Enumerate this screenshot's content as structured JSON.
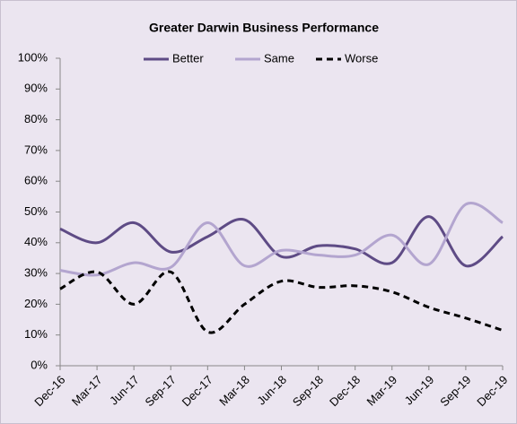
{
  "chart_data": {
    "type": "line",
    "title": "Greater Darwin Business Performance",
    "categories": [
      "Dec-16",
      "Mar-17",
      "Jun-17",
      "Sep-17",
      "Dec-17",
      "Mar-18",
      "Jun-18",
      "Sep-18",
      "Dec-18",
      "Mar-19",
      "Jun-19",
      "Sep-19",
      "Dec-19"
    ],
    "series": [
      {
        "name": "Better",
        "color": "#5e4b85",
        "line_style": "solid",
        "values": [
          44.5,
          40,
          46.5,
          37,
          42,
          47.5,
          35.5,
          39,
          38,
          33.5,
          48.5,
          32.5,
          42
        ]
      },
      {
        "name": "Same",
        "color": "#b3a5cf",
        "line_style": "solid",
        "values": [
          31,
          29.5,
          33.5,
          32,
          46.5,
          32.5,
          37.5,
          36,
          36,
          42.5,
          33,
          52.5,
          46.5
        ]
      },
      {
        "name": "Worse",
        "color": "#000000",
        "line_style": "dashed",
        "values": [
          25,
          30.5,
          20,
          30.5,
          11,
          20,
          27.5,
          25.5,
          26,
          24,
          19,
          15.5,
          11.5
        ]
      }
    ],
    "ylim": [
      0,
      100
    ],
    "yticks": [
      {
        "value": 0,
        "label": "0%"
      },
      {
        "value": 10,
        "label": "10%"
      },
      {
        "value": 20,
        "label": "20%"
      },
      {
        "value": 30,
        "label": "30%"
      },
      {
        "value": 40,
        "label": "40%"
      },
      {
        "value": 50,
        "label": "50%"
      },
      {
        "value": 60,
        "label": "60%"
      },
      {
        "value": 70,
        "label": "70%"
      },
      {
        "value": 80,
        "label": "80%"
      },
      {
        "value": 90,
        "label": "90%"
      },
      {
        "value": 100,
        "label": "100%"
      }
    ],
    "smooth": true,
    "legend": "top",
    "grid": false
  }
}
